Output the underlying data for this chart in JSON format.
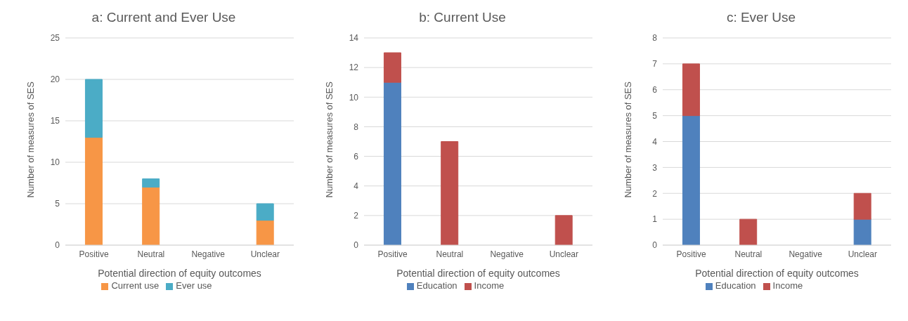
{
  "chart_data": [
    {
      "type": "bar",
      "title": "a: Current and Ever Use",
      "xlabel": "Potential direction of equity outcomes",
      "ylabel": "Number of measures of SES",
      "categories": [
        "Positive",
        "Neutral",
        "Negative",
        "Unclear"
      ],
      "stacked": true,
      "ylim": [
        0,
        25
      ],
      "yticks": [
        0,
        5,
        10,
        15,
        20,
        25
      ],
      "grid": "y",
      "legend": "bottom",
      "series": [
        {
          "name": "Current use",
          "color": "#f79646",
          "values": [
            13,
            7,
            0,
            3
          ]
        },
        {
          "name": "Ever use",
          "color": "#4bacc6",
          "values": [
            7,
            1,
            0,
            2
          ]
        }
      ]
    },
    {
      "type": "bar",
      "title": "b: Current Use",
      "xlabel": "Potential direction of equity outcomes",
      "ylabel": "Number of measures of SES",
      "categories": [
        "Positive",
        "Neutral",
        "Negative",
        "Unclear"
      ],
      "stacked": true,
      "ylim": [
        0,
        14
      ],
      "yticks": [
        0,
        2,
        4,
        6,
        8,
        10,
        12,
        14
      ],
      "grid": "y",
      "legend": "bottom",
      "series": [
        {
          "name": "Education",
          "color": "#4f81bd",
          "values": [
            11,
            0,
            0,
            0
          ]
        },
        {
          "name": "Income",
          "color": "#c0504d",
          "values": [
            2,
            7,
            0,
            2
          ]
        }
      ]
    },
    {
      "type": "bar",
      "title": "c: Ever Use",
      "xlabel": "Potential direction of equity outcomes",
      "ylabel": "Number of measures of SES",
      "categories": [
        "Positive",
        "Neutral",
        "Negative",
        "Unclear"
      ],
      "stacked": true,
      "ylim": [
        0,
        8
      ],
      "yticks": [
        0,
        1,
        2,
        3,
        4,
        5,
        6,
        7,
        8
      ],
      "grid": "y",
      "legend": "bottom",
      "series": [
        {
          "name": "Education",
          "color": "#4f81bd",
          "values": [
            5,
            0,
            0,
            1
          ]
        },
        {
          "name": "Income",
          "color": "#c0504d",
          "values": [
            2,
            1,
            0,
            1
          ]
        }
      ]
    }
  ]
}
